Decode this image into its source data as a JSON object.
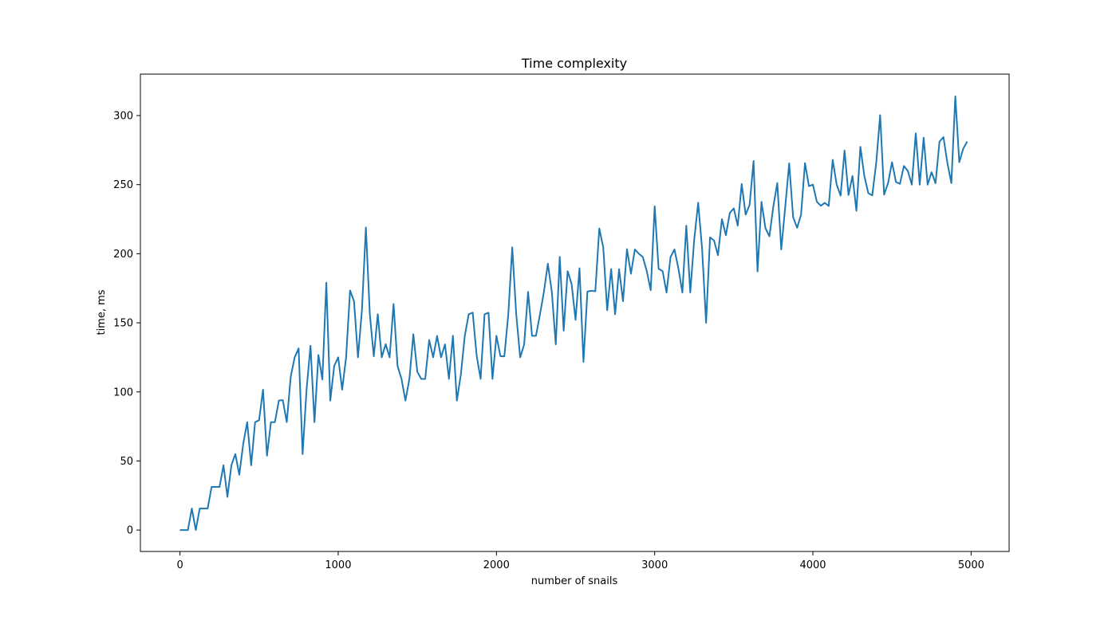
{
  "chart_data": {
    "type": "line",
    "title": "Time complexity",
    "xlabel": "number of snails",
    "ylabel": "time, ms",
    "xlim": [
      -250,
      5240
    ],
    "ylim": [
      -15.5,
      330
    ],
    "xticks": [
      0,
      1000,
      2000,
      3000,
      4000,
      5000
    ],
    "yticks": [
      0,
      50,
      100,
      150,
      200,
      250,
      300
    ],
    "grid": false,
    "line_color": "#1f77b4",
    "series": [
      {
        "x": [
          0,
          25,
          50,
          75,
          100,
          125,
          150,
          175,
          200,
          225,
          250,
          275,
          300,
          325,
          350,
          375,
          400,
          425,
          450,
          475,
          500,
          525,
          550,
          575,
          600,
          625,
          650,
          675,
          700,
          725,
          750,
          775,
          800,
          825,
          850,
          875,
          900,
          925,
          950,
          975,
          1000,
          1025,
          1050,
          1075,
          1100,
          1125,
          1150,
          1175,
          1200,
          1225,
          1250,
          1275,
          1300,
          1325,
          1350,
          1375,
          1400,
          1425,
          1450,
          1475,
          1500,
          1525,
          1550,
          1575,
          1600,
          1625,
          1650,
          1675,
          1700,
          1725,
          1750,
          1775,
          1800,
          1825,
          1850,
          1875,
          1900,
          1925,
          1950,
          1975,
          2000,
          2025,
          2050,
          2075,
          2100,
          2125,
          2150,
          2175,
          2200,
          2225,
          2250,
          2275,
          2300,
          2325,
          2350,
          2375,
          2400,
          2425,
          2450,
          2475,
          2500,
          2525,
          2550,
          2575,
          2600,
          2625,
          2650,
          2675,
          2700,
          2725,
          2750,
          2775,
          2800,
          2825,
          2850,
          2875,
          2900,
          2925,
          2950,
          2975,
          3000,
          3025,
          3050,
          3075,
          3100,
          3125,
          3150,
          3175,
          3200,
          3225,
          3250,
          3275,
          3300,
          3325,
          3350,
          3375,
          3400,
          3425,
          3450,
          3475,
          3500,
          3525,
          3550,
          3575,
          3600,
          3625,
          3650,
          3675,
          3700,
          3725,
          3750,
          3775,
          3800,
          3825,
          3850,
          3875,
          3900,
          3925,
          3950,
          3975,
          4000,
          4025,
          4050,
          4075,
          4100,
          4125,
          4150,
          4175,
          4200,
          4225,
          4250,
          4275,
          4300,
          4325,
          4350,
          4375,
          4400,
          4425,
          4450,
          4475,
          4500,
          4525,
          4550,
          4575,
          4600,
          4625,
          4650,
          4675,
          4700,
          4725,
          4750,
          4775,
          4800,
          4825,
          4850,
          4875,
          4900,
          4925,
          4950,
          4975
        ],
        "y": [
          0,
          0,
          0,
          15.6,
          0,
          15.6,
          15.6,
          15.6,
          31.2,
          31.2,
          31.2,
          46.9,
          24,
          46.9,
          55,
          40,
          62.5,
          78.1,
          46.9,
          78.1,
          79.5,
          101.6,
          53.8,
          78.1,
          78.1,
          93.7,
          94,
          78.1,
          111,
          125,
          131.5,
          55,
          101.6,
          133.4,
          78.1,
          126.7,
          109,
          179,
          93.7,
          118.9,
          125,
          101.6,
          125,
          173.4,
          165.6,
          125,
          159,
          219,
          156,
          125.8,
          156.2,
          125,
          134.5,
          125,
          163.6,
          118.8,
          109.4,
          93.7,
          109.4,
          141.7,
          114.6,
          109.4,
          109.4,
          137.6,
          125,
          140.5,
          125,
          134.4,
          109.4,
          140.6,
          93.7,
          112.4,
          140.6,
          156.2,
          157.4,
          126.3,
          109.4,
          156.2,
          157.3,
          109.4,
          140.6,
          125.9,
          125.7,
          156.2,
          204.6,
          156.3,
          125,
          134.2,
          172.4,
          140.6,
          140.6,
          156,
          172.3,
          192.8,
          172.4,
          134.4,
          197.7,
          144.3,
          187.4,
          178.1,
          152.1,
          189.5,
          121.7,
          172.6,
          173.2,
          172.8,
          218.3,
          204.7,
          159.1,
          188.9,
          156.2,
          188.8,
          165.6,
          203.3,
          185.5,
          203.1,
          200,
          197.6,
          187.5,
          173.6,
          234.3,
          189.1,
          187.4,
          171.9,
          197.5,
          203.1,
          189.4,
          171.9,
          220.3,
          171.9,
          210.3,
          236.9,
          203.1,
          150,
          211.8,
          209.6,
          198.9,
          225,
          213.4,
          229.6,
          232.8,
          220.3,
          250.5,
          228.3,
          235.4,
          267.1,
          187.2,
          237.6,
          218.5,
          212.6,
          234.2,
          251.2,
          203.1,
          233.7,
          265.4,
          226.5,
          218.8,
          228.1,
          265.6,
          248.9,
          250,
          237.6,
          234.7,
          236.8,
          234.6,
          267.9,
          250.1,
          242,
          274.7,
          242.5,
          256.3,
          231.1,
          277.4,
          256.3,
          243.9,
          242.2,
          265.6,
          300.3,
          242.8,
          251.1,
          266.2,
          251.9,
          250.6,
          263.5,
          259.9,
          250,
          287.1,
          250,
          284,
          250,
          259,
          251,
          281.1,
          284.4,
          265.6,
          251.1,
          313.9,
          266.3,
          276,
          281.2
        ]
      }
    ]
  }
}
